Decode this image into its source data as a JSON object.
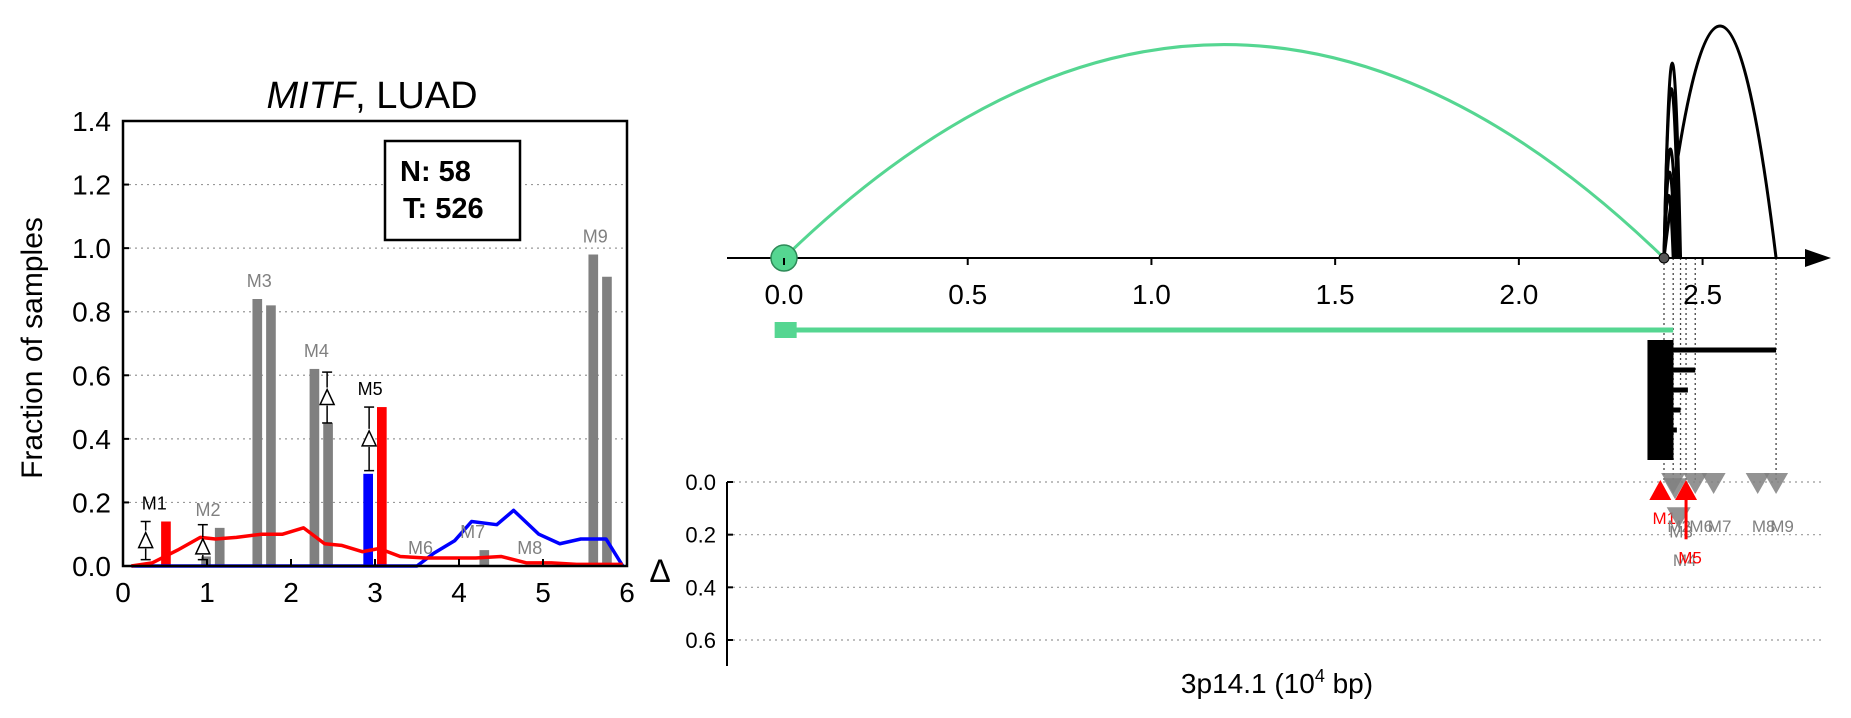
{
  "chart_data": [
    {
      "type": "bar",
      "title_gene": "MITF",
      "title_rest": ", LUAD",
      "ylabel": "Fraction of samples",
      "xlim": [
        0,
        6
      ],
      "ylim": [
        0,
        1.4
      ],
      "xticks": [
        "0",
        "1",
        "2",
        "3",
        "4",
        "5",
        "6"
      ],
      "yticks": [
        "0.0",
        "0.2",
        "0.4",
        "0.6",
        "0.8",
        "1.0",
        "1.2",
        "1.4"
      ],
      "grid": "horizontal dotted",
      "legend_box": {
        "n_label": "N: 58",
        "t_label": "T: 526"
      },
      "colors": {
        "normal_bar": "#808080",
        "highlight_bar": "#ff0000",
        "normal_highlight": "#0000ff",
        "tumor_line": "#ff0000",
        "normal_line": "#0000ff"
      },
      "bars": [
        {
          "label": "M1",
          "highlight": true,
          "normal": 0.0,
          "tumor": 0.14
        },
        {
          "label": "M2",
          "highlight": false,
          "normal": 0.03,
          "tumor": 0.12
        },
        {
          "label": "M3",
          "highlight": false,
          "normal": 0.84,
          "tumor": 0.82
        },
        {
          "label": "M4",
          "highlight": false,
          "normal": 0.62,
          "tumor": 0.45
        },
        {
          "label": "M5",
          "highlight": true,
          "normal": 0.29,
          "tumor": 0.5
        },
        {
          "label": "M6",
          "highlight": false,
          "normal": 0.0,
          "tumor": 0.0
        },
        {
          "label": "M7",
          "highlight": false,
          "normal": 0.0,
          "tumor": 0.05
        },
        {
          "label": "M8",
          "highlight": false,
          "normal": 0.0,
          "tumor": 0.0
        },
        {
          "label": "M9",
          "highlight": false,
          "normal": 0.98,
          "tumor": 0.91
        }
      ],
      "bar_x": [
        0.43,
        1.07,
        1.68,
        2.36,
        3.0,
        3.6,
        4.22,
        4.9,
        5.68
      ],
      "delta_markers": [
        {
          "label": "M1",
          "x": 0.27,
          "center": 0.08,
          "low": 0.02,
          "high": 0.14
        },
        {
          "label": "M2",
          "x": 0.95,
          "center": 0.06,
          "low": 0.02,
          "high": 0.13
        },
        {
          "label": "M4",
          "x": 2.43,
          "center": 0.53,
          "low": 0.45,
          "high": 0.61
        },
        {
          "label": "M5",
          "x": 2.93,
          "center": 0.4,
          "low": 0.3,
          "high": 0.5
        }
      ],
      "tumor_line": {
        "x": [
          0.1,
          0.35,
          0.65,
          0.92,
          1.1,
          1.35,
          1.65,
          1.9,
          2.15,
          2.4,
          2.6,
          2.85,
          3.05,
          3.3,
          3.6,
          3.9,
          4.2,
          4.5,
          4.8,
          5.1,
          5.4,
          5.7,
          5.95
        ],
        "y": [
          0.0,
          0.01,
          0.05,
          0.09,
          0.085,
          0.09,
          0.1,
          0.1,
          0.12,
          0.07,
          0.065,
          0.045,
          0.055,
          0.03,
          0.025,
          0.025,
          0.025,
          0.03,
          0.01,
          0.01,
          0.005,
          0.005,
          0.005
        ]
      },
      "normal_line": {
        "x": [
          0.1,
          3.1,
          3.5,
          3.7,
          3.95,
          4.15,
          4.45,
          4.65,
          4.95,
          5.2,
          5.45,
          5.75,
          5.95
        ],
        "y": [
          0.0,
          0.0,
          0.0,
          0.04,
          0.08,
          0.14,
          0.13,
          0.175,
          0.1,
          0.07,
          0.085,
          0.085,
          0.0
        ]
      }
    },
    {
      "type": "line",
      "xlabel_main": "3p14.1 (10",
      "xlabel_sup": "4",
      "xlabel_tail": " bp)",
      "xlim": [
        -0.15,
        2.9
      ],
      "xticks": [
        "0.0",
        "0.5",
        "1.0",
        "1.5",
        "2.0",
        "2.5"
      ],
      "arcs": [
        {
          "from": 0.0,
          "to": 2.395,
          "height": 0.92,
          "color": "#55d691"
        },
        {
          "from": 2.395,
          "to": 2.44,
          "height": 0.84,
          "color": "#000000"
        },
        {
          "from": 2.395,
          "to": 2.435,
          "height": 0.73,
          "color": "#000000"
        },
        {
          "from": 2.395,
          "to": 2.43,
          "height": 0.47,
          "color": "#000000"
        },
        {
          "from": 2.395,
          "to": 2.425,
          "height": 0.37,
          "color": "#000000"
        },
        {
          "from": 2.395,
          "to": 2.42,
          "height": 0.27,
          "color": "#000000"
        },
        {
          "from": 2.395,
          "to": 2.7,
          "height": 1.0,
          "color": "#000000"
        }
      ],
      "transcripts": [
        {
          "start": -0.02,
          "end": 2.42,
          "color": "#55d691"
        },
        {
          "start": 2.35,
          "end": 2.7,
          "color": "#000000"
        },
        {
          "start": 2.35,
          "end": 2.48,
          "color": "#000000"
        },
        {
          "start": 2.35,
          "end": 2.46,
          "color": "#000000"
        },
        {
          "start": 2.35,
          "end": 2.44,
          "color": "#000000"
        },
        {
          "start": 2.35,
          "end": 2.43,
          "color": "#000000"
        },
        {
          "start": 2.35,
          "end": 2.42,
          "color": "#000000"
        }
      ],
      "delta_axis": {
        "label": "Δ",
        "yticks": [
          "0.0",
          "0.2",
          "0.4",
          "0.6"
        ],
        "ylim": [
          0,
          0.7
        ]
      },
      "delta_points": [
        {
          "label": "M1",
          "x": 2.385,
          "delta": 0.06,
          "highlight": true
        },
        {
          "label": "M2",
          "x": 2.42,
          "delta": 0.0,
          "highlight": false
        },
        {
          "label": "M3",
          "x": 2.425,
          "delta": 0.02,
          "highlight": false
        },
        {
          "label": "M4",
          "x": 2.435,
          "delta": 0.13,
          "highlight": false
        },
        {
          "label": "M5",
          "x": 2.455,
          "delta": 0.21,
          "highlight": true
        },
        {
          "label": "M6",
          "x": 2.48,
          "delta": 0.0,
          "highlight": false
        },
        {
          "label": "M7",
          "x": 2.53,
          "delta": 0.0,
          "highlight": false
        },
        {
          "label": "M8",
          "x": 2.65,
          "delta": 0.0,
          "highlight": false
        },
        {
          "label": "M9",
          "x": 2.7,
          "delta": 0.0,
          "highlight": false
        }
      ],
      "colors": {
        "gene_arc": "#55d691",
        "marker_grey": "#808080",
        "highlight": "#ff0000"
      }
    }
  ]
}
